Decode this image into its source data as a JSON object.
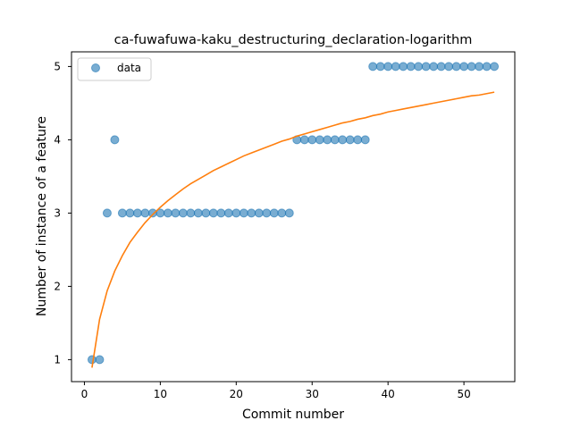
{
  "chart_data": {
    "type": "scatter",
    "title": "ca-fuwafuwa-kaku_destructuring_declaration-logarithm",
    "xlabel": "Commit number",
    "ylabel": "Number of instance of a feature",
    "xlim": [
      -1.7,
      56.7
    ],
    "ylim": [
      0.7,
      5.2
    ],
    "xticks": [
      0,
      10,
      20,
      30,
      40,
      50
    ],
    "yticks": [
      1,
      2,
      3,
      4,
      5
    ],
    "grid": false,
    "legend": {
      "placement": "top-left",
      "entries": [
        "data"
      ]
    },
    "series": [
      {
        "name": "data",
        "kind": "scatter",
        "color": "#1f77b4",
        "x": [
          1,
          2,
          3,
          4,
          5,
          6,
          7,
          8,
          9,
          10,
          11,
          12,
          13,
          14,
          15,
          16,
          17,
          18,
          19,
          20,
          21,
          22,
          23,
          24,
          25,
          26,
          27,
          28,
          29,
          30,
          31,
          32,
          33,
          34,
          35,
          36,
          37,
          38,
          39,
          40,
          41,
          42,
          43,
          44,
          45,
          46,
          47,
          48,
          49,
          50,
          51,
          52,
          53,
          54
        ],
        "y": [
          1,
          1,
          3,
          4,
          3,
          3,
          3,
          3,
          3,
          3,
          3,
          3,
          3,
          3,
          3,
          3,
          3,
          3,
          3,
          3,
          3,
          3,
          3,
          3,
          3,
          3,
          3,
          4,
          4,
          4,
          4,
          4,
          4,
          4,
          4,
          4,
          4,
          5,
          5,
          5,
          5,
          5,
          5,
          5,
          5,
          5,
          5,
          5,
          5,
          5,
          5,
          5,
          5,
          5
        ]
      },
      {
        "kind": "line",
        "color": "#ff7f0e",
        "x": [
          1,
          2,
          3,
          4,
          5,
          6,
          7,
          8,
          9,
          10,
          11,
          12,
          13,
          14,
          15,
          16,
          17,
          18,
          19,
          20,
          21,
          22,
          23,
          24,
          25,
          26,
          27,
          28,
          29,
          30,
          31,
          32,
          33,
          34,
          35,
          36,
          37,
          38,
          39,
          40,
          41,
          42,
          43,
          44,
          45,
          46,
          47,
          48,
          49,
          50,
          51,
          52,
          53,
          54
        ],
        "y": [
          0.89,
          1.55,
          1.94,
          2.21,
          2.42,
          2.6,
          2.74,
          2.87,
          2.98,
          3.08,
          3.17,
          3.25,
          3.33,
          3.4,
          3.46,
          3.52,
          3.58,
          3.63,
          3.68,
          3.73,
          3.78,
          3.82,
          3.86,
          3.9,
          3.94,
          3.98,
          4.01,
          4.05,
          4.08,
          4.11,
          4.14,
          4.17,
          4.2,
          4.23,
          4.25,
          4.28,
          4.3,
          4.33,
          4.35,
          4.38,
          4.4,
          4.42,
          4.44,
          4.46,
          4.48,
          4.5,
          4.52,
          4.54,
          4.56,
          4.58,
          4.6,
          4.61,
          4.63,
          4.65
        ]
      }
    ]
  }
}
